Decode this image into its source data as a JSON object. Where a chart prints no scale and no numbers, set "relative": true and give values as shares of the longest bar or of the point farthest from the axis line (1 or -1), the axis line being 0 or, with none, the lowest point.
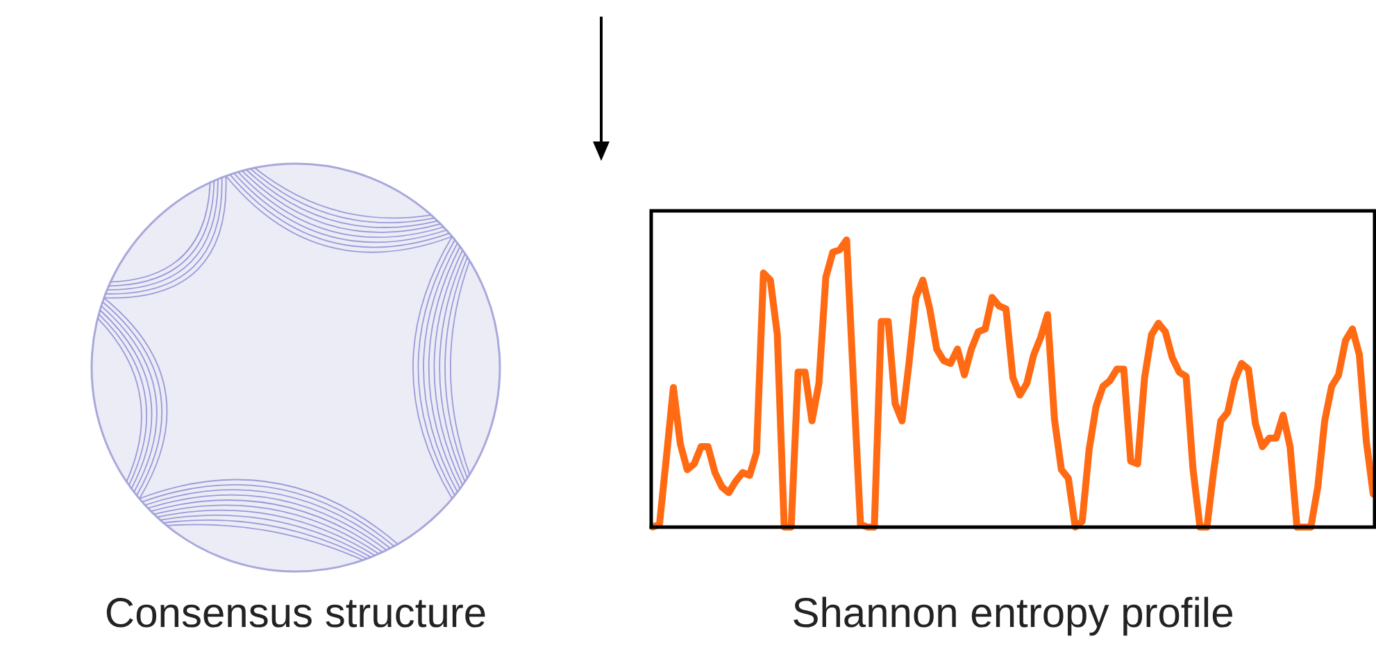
{
  "chart_data": {
    "type": "line",
    "relative": true,
    "xlabel": "Shannon entropy profile",
    "annotations": [
      "Consensus structure"
    ],
    "categories": [
      null,
      null,
      null,
      null,
      null,
      null,
      null,
      null,
      null,
      null,
      null,
      null,
      null,
      null,
      null,
      null,
      null,
      null,
      null,
      null,
      null,
      null,
      null,
      null,
      null,
      null,
      null,
      null,
      null,
      null,
      null,
      null,
      null,
      null,
      null,
      null,
      null,
      null,
      null,
      null,
      null,
      null,
      null,
      null,
      null,
      null,
      null,
      null,
      null,
      null,
      null,
      null,
      null,
      null,
      null,
      null,
      null,
      null,
      null,
      null,
      null,
      null,
      null,
      null,
      null,
      null,
      null,
      null,
      null,
      null,
      null,
      null,
      null,
      null,
      null,
      null,
      null,
      null,
      null,
      null,
      null,
      null,
      null,
      null,
      null,
      null,
      null,
      null,
      null,
      null,
      null,
      null,
      null,
      null,
      null,
      null,
      null,
      null,
      null,
      null,
      null,
      null,
      null,
      null,
      null
    ],
    "series": [
      {
        "color": "#ff6a13",
        "values": [
          0,
          0.01,
          0.245,
          0.486,
          0.29,
          0.2,
          0.22,
          0.28,
          0.28,
          0.19,
          0.14,
          0.12,
          0.16,
          0.19,
          0.18,
          0.26,
          0.885,
          0.86,
          0.67,
          0,
          0,
          0.54,
          0.54,
          0.37,
          0.5,
          0.87,
          0.957,
          0.966,
          1,
          0.5,
          0.01,
          0,
          0,
          0.716,
          0.716,
          0.43,
          0.37,
          0.57,
          0.8,
          0.86,
          0.76,
          0.62,
          0.58,
          0.57,
          0.62,
          0.53,
          0.62,
          0.68,
          0.69,
          0.8,
          0.77,
          0.76,
          0.52,
          0.46,
          0.5,
          0.6,
          0.66,
          0.74,
          0.375,
          0.2,
          0.17,
          0,
          0.02,
          0.27,
          0.42,
          0.49,
          0.51,
          0.55,
          0.55,
          0.23,
          0.22,
          0.52,
          0.67,
          0.71,
          0.68,
          0.59,
          0.54,
          0.525,
          0.2,
          0,
          0,
          0.2,
          0.37,
          0.4,
          0.51,
          0.57,
          0.55,
          0.36,
          0.28,
          0.31,
          0.31,
          0.39,
          0.28,
          0,
          0,
          0,
          0.14,
          0.37,
          0.49,
          0.53,
          0.65,
          0.69,
          0.6,
          0.3,
          0.115
        ]
      }
    ]
  }
}
